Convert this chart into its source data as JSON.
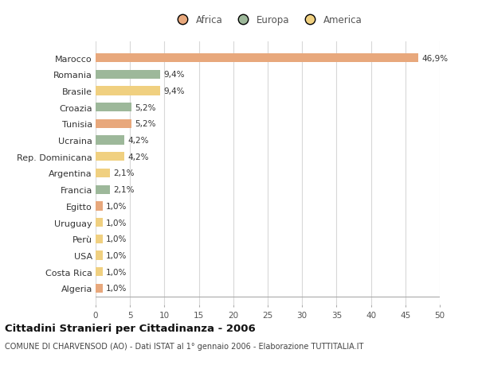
{
  "countries": [
    "Marocco",
    "Romania",
    "Brasile",
    "Croazia",
    "Tunisia",
    "Ucraina",
    "Rep. Dominicana",
    "Argentina",
    "Francia",
    "Egitto",
    "Uruguay",
    "Perù",
    "USA",
    "Costa Rica",
    "Algeria"
  ],
  "values": [
    46.9,
    9.4,
    9.4,
    5.2,
    5.2,
    4.2,
    4.2,
    2.1,
    2.1,
    1.0,
    1.0,
    1.0,
    1.0,
    1.0,
    1.0
  ],
  "labels": [
    "46,9%",
    "9,4%",
    "9,4%",
    "5,2%",
    "5,2%",
    "4,2%",
    "4,2%",
    "2,1%",
    "2,1%",
    "1,0%",
    "1,0%",
    "1,0%",
    "1,0%",
    "1,0%",
    "1,0%"
  ],
  "continents": [
    "Africa",
    "Europa",
    "America",
    "Europa",
    "Africa",
    "Europa",
    "America",
    "America",
    "Europa",
    "Africa",
    "America",
    "America",
    "America",
    "America",
    "Africa"
  ],
  "colors": {
    "Africa": "#E8A87C",
    "Europa": "#9DB89A",
    "America": "#F0D080"
  },
  "xlim": [
    0,
    50
  ],
  "xticks": [
    0,
    5,
    10,
    15,
    20,
    25,
    30,
    35,
    40,
    45,
    50
  ],
  "title": "Cittadini Stranieri per Cittadinanza - 2006",
  "subtitle": "COMUNE DI CHARVENSOD (AO) - Dati ISTAT al 1° gennaio 2006 - Elaborazione TUTTITALIA.IT",
  "background_color": "#ffffff",
  "grid_color": "#d8d8d8",
  "bar_height": 0.55,
  "label_fontsize": 7.5,
  "ytick_fontsize": 8,
  "xtick_fontsize": 7.5,
  "title_fontsize": 9.5,
  "subtitle_fontsize": 7
}
